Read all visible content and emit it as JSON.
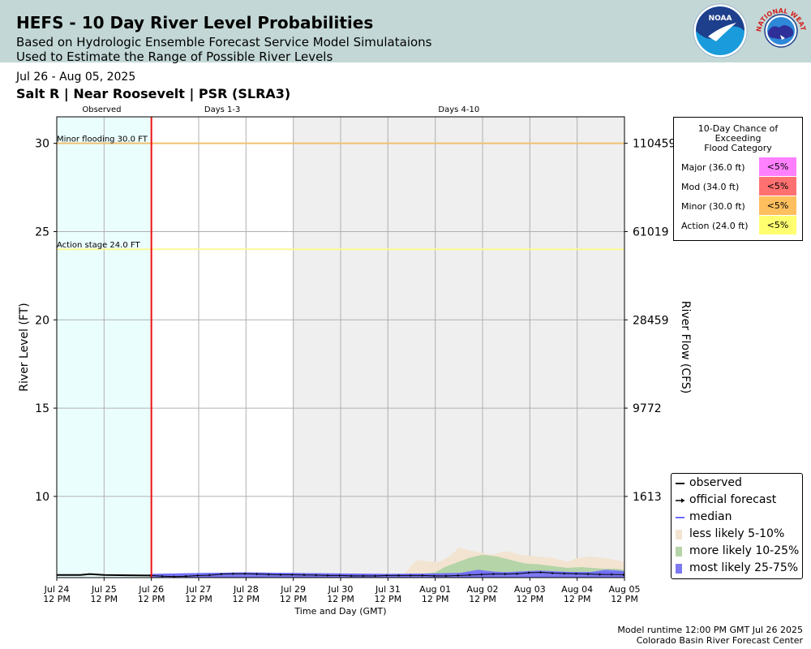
{
  "header": {
    "title": "HEFS - 10 Day River Level Probabilities",
    "subtitle_line1": "Based on Hydrologic Ensemble Forecast Service Model Simulataions",
    "subtitle_line2": "Used to Estimate the Range of Possible River Levels",
    "logos": [
      "noaa-logo",
      "national-weather-service-logo"
    ],
    "logo_text": "NATIONAL WEATHER SERVICE"
  },
  "date_range": "Jul 26 - Aug 05, 2025",
  "station": "Salt R | Near Roosevelt | PSR (SLRA3)",
  "flood_chance": {
    "title_lines": [
      "10-Day Chance of",
      "Exceeding",
      "Flood Category"
    ],
    "rows": [
      {
        "label": "Major (36.0 ft)",
        "value": "<5%",
        "color": "#ff80ff"
      },
      {
        "label": "Mod (34.0 ft)",
        "value": "<5%",
        "color": "#ff7070"
      },
      {
        "label": "Minor (30.0 ft)",
        "value": "<5%",
        "color": "#ffbf5f"
      },
      {
        "label": "Action (24.0 ft)",
        "value": "<5%",
        "color": "#ffff70"
      }
    ]
  },
  "footer": {
    "line1": "Model runtime 12:00 PM GMT Jul 26 2025",
    "line2": "Colorado Basin River Forecast Center"
  },
  "chart_data": {
    "type": "area",
    "xlabel": "Time and Day (GMT)",
    "ylabel": "River Level (FT)",
    "ylabel_right": "River Flow (CFS)",
    "ylim": [
      5.4,
      31.5
    ],
    "xlim": [
      0,
      12
    ],
    "yticks": [
      10,
      15,
      20,
      25,
      30
    ],
    "right_ticks": [
      {
        "stage": 10,
        "label": "1613"
      },
      {
        "stage": 15,
        "label": "9772"
      },
      {
        "stage": 20,
        "label": "28459"
      },
      {
        "stage": 25,
        "label": "61019"
      },
      {
        "stage": 30,
        "label": "110459"
      }
    ],
    "xticks": [
      {
        "x": 0,
        "l1": "Jul 24",
        "l2": "12 PM"
      },
      {
        "x": 1,
        "l1": "Jul 25",
        "l2": "12 PM"
      },
      {
        "x": 2,
        "l1": "Jul 26",
        "l2": "12 PM"
      },
      {
        "x": 3,
        "l1": "Jul 27",
        "l2": "12 PM"
      },
      {
        "x": 4,
        "l1": "Jul 28",
        "l2": "12 PM"
      },
      {
        "x": 5,
        "l1": "Jul 29",
        "l2": "12 PM"
      },
      {
        "x": 6,
        "l1": "Jul 30",
        "l2": "12 PM"
      },
      {
        "x": 7,
        "l1": "Jul 31",
        "l2": "12 PM"
      },
      {
        "x": 8,
        "l1": "Aug 01",
        "l2": "12 PM"
      },
      {
        "x": 9,
        "l1": "Aug 02",
        "l2": "12 PM"
      },
      {
        "x": 10,
        "l1": "Aug 03",
        "l2": "12 PM"
      },
      {
        "x": 11,
        "l1": "Aug 04",
        "l2": "12 PM"
      },
      {
        "x": 12,
        "l1": "Aug 05",
        "l2": "12 PM"
      }
    ],
    "periods": [
      {
        "label": "Observed",
        "start": 0,
        "end": 2,
        "color": "#ebfefe",
        "label_x": 0.95
      },
      {
        "label": "Days 1-3",
        "start": 2,
        "end": 5,
        "color": "#ffffff",
        "label_x": 3.5
      },
      {
        "label": "Days 4-10",
        "start": 5,
        "end": 12,
        "color": "#efefef",
        "label_x": 8.5
      }
    ],
    "forecast_start": 2,
    "thresholds": [
      {
        "label": "Minor flooding 30.0 FT",
        "value": 30,
        "color": "#f0c070"
      },
      {
        "label": "Action stage 24.0 FT",
        "value": 24,
        "color": "#fafa96"
      }
    ],
    "observed": {
      "x": [
        0,
        0.5,
        0.7,
        1.0,
        1.5,
        2.0
      ],
      "y": [
        5.55,
        5.55,
        5.6,
        5.55,
        5.53,
        5.52
      ]
    },
    "official_forecast": {
      "x": [
        2,
        2.25,
        2.5,
        2.75,
        3,
        3.25,
        3.5,
        3.75,
        4,
        4.25,
        4.5,
        4.75,
        5,
        5.25,
        5.5,
        5.75,
        6,
        6.25,
        6.5,
        6.75,
        7,
        7.25,
        7.5,
        7.75,
        8,
        8.25,
        8.5,
        8.75,
        9,
        9.25,
        9.5,
        9.75,
        10,
        10.25,
        10.5,
        10.75,
        11,
        11.25,
        11.5,
        11.75,
        12
      ],
      "y": [
        5.52,
        5.48,
        5.46,
        5.48,
        5.52,
        5.54,
        5.6,
        5.62,
        5.62,
        5.6,
        5.58,
        5.56,
        5.56,
        5.55,
        5.54,
        5.52,
        5.52,
        5.5,
        5.5,
        5.5,
        5.52,
        5.52,
        5.52,
        5.52,
        5.5,
        5.5,
        5.52,
        5.55,
        5.58,
        5.6,
        5.6,
        5.62,
        5.68,
        5.7,
        5.65,
        5.63,
        5.62,
        5.6,
        5.58,
        5.58,
        5.56
      ]
    },
    "series": [
      {
        "name": "less likely 5-10%",
        "color": "#f2e4d1",
        "x": [
          2,
          3,
          4,
          5,
          6,
          7,
          7.35,
          7.6,
          7.9,
          8.1,
          8.3,
          8.5,
          8.8,
          9.0,
          9.2,
          9.5,
          9.8,
          10.1,
          10.5,
          10.8,
          11.0,
          11.3,
          11.6,
          11.8,
          12
        ],
        "lower": [
          5.55,
          5.55,
          5.62,
          5.6,
          5.55,
          5.55,
          5.6,
          6.4,
          6.3,
          6.3,
          6.6,
          7.1,
          6.9,
          6.8,
          6.7,
          6.9,
          6.7,
          6.6,
          6.5,
          6.3,
          6.5,
          6.6,
          6.5,
          6.4,
          6.3
        ],
        "upper": [
          5.55,
          5.55,
          5.62,
          5.6,
          5.55,
          5.55,
          5.6,
          6.4,
          6.3,
          6.3,
          6.6,
          7.1,
          6.9,
          6.8,
          6.7,
          6.9,
          6.7,
          6.6,
          6.5,
          6.3,
          6.5,
          6.6,
          6.5,
          6.4,
          6.3
        ]
      },
      {
        "name": "more likely 10-25%",
        "color": "#b5d4a8",
        "x": [
          2,
          3,
          4,
          5,
          6,
          7,
          7.7,
          8.0,
          8.2,
          8.4,
          8.7,
          9.0,
          9.3,
          9.6,
          9.9,
          10.2,
          10.5,
          10.8,
          11.1,
          11.3,
          11.6,
          11.8,
          12
        ],
        "upper": [
          5.55,
          5.55,
          5.62,
          5.6,
          5.55,
          5.55,
          5.6,
          5.7,
          6.0,
          6.2,
          6.5,
          6.7,
          6.6,
          6.4,
          6.2,
          6.15,
          6.05,
          5.95,
          6.0,
          5.95,
          5.9,
          5.9,
          5.85
        ]
      },
      {
        "name": "most likely 25-75%",
        "color": "#7c79f2",
        "x": [
          2,
          3,
          4,
          5,
          6,
          7,
          8,
          8.5,
          8.9,
          9.2,
          9.5,
          9.8,
          10.2,
          10.6,
          11.0,
          11.3,
          11.6,
          11.9,
          12
        ],
        "upper": [
          5.6,
          5.66,
          5.7,
          5.66,
          5.62,
          5.6,
          5.62,
          5.65,
          5.85,
          5.75,
          5.7,
          5.75,
          5.8,
          5.75,
          5.7,
          5.72,
          5.85,
          5.8,
          5.75
        ]
      },
      {
        "name": "median",
        "color": "#6b6bff",
        "x": [
          2,
          3,
          4,
          5,
          6,
          7,
          8,
          9,
          10,
          11,
          12
        ],
        "y": [
          5.58,
          5.62,
          5.66,
          5.63,
          5.6,
          5.58,
          5.6,
          5.65,
          5.7,
          5.68,
          5.68
        ]
      }
    ],
    "legend": [
      {
        "label": "observed",
        "kind": "line",
        "color": "#000000"
      },
      {
        "label": "official forecast",
        "kind": "arrow",
        "color": "#000000"
      },
      {
        "label": "median",
        "kind": "line",
        "color": "#6b6bff"
      },
      {
        "label": "less likely 5-10%",
        "kind": "patch",
        "color": "#f2e4d1"
      },
      {
        "label": "more likely 10-25%",
        "kind": "patch",
        "color": "#b5d4a8"
      },
      {
        "label": "most likely 25-75%",
        "kind": "patch",
        "color": "#7c79f2"
      }
    ],
    "legend_position": "lower-right (outside plot)"
  }
}
